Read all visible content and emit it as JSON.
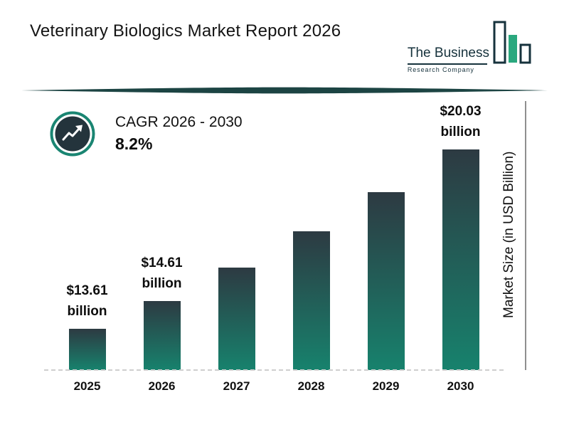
{
  "header": {
    "title": "Veterinary Biologics Market Report 2026",
    "logo": {
      "name": "The Business",
      "subtitle": "Research Company"
    }
  },
  "cagr": {
    "label": "CAGR 2026 - 2030",
    "value": "8.2%"
  },
  "icons": {
    "cagr_badge": "trending-up-arrow",
    "logo_mark": "bar-chart-outline"
  },
  "chart_data": {
    "type": "bar",
    "title": "Veterinary Biologics Market Report 2026",
    "categories": [
      "2025",
      "2026",
      "2027",
      "2028",
      "2029",
      "2030"
    ],
    "values": [
      13.61,
      14.61,
      15.81,
      17.1,
      18.51,
      20.03
    ],
    "value_labels": [
      "$13.61 billion",
      "$14.61 billion",
      "",
      "",
      "",
      "$20.03 billion"
    ],
    "xlabel": "",
    "ylabel": "Market Size (in USD Billion)",
    "legend": false,
    "grid": false,
    "baseline_style": "dashed",
    "colors": {
      "bar_top": "#2d3a42",
      "bar_bottom": "#17826d",
      "accent": "#1a8572",
      "divider": "#1c4443",
      "logo_green": "#2aa87e",
      "logo_dark": "#16323c"
    }
  }
}
